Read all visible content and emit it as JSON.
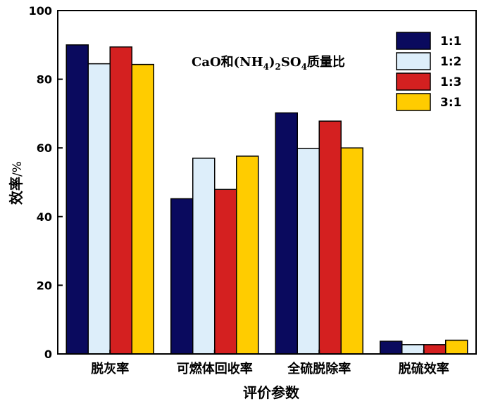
{
  "chart_data": {
    "type": "bar",
    "title": "",
    "xlabel": "评价参数",
    "ylabel": "效率",
    "ylabel_unit": "/%",
    "ylim": [
      0,
      100
    ],
    "yticks": [
      "0",
      "20",
      "40",
      "60",
      "80",
      "100"
    ],
    "categories": [
      "脱灰率",
      "可燃体回收率",
      "全硫脱除率",
      "脱硫效率"
    ],
    "legend_title": {
      "prefix": "CaO和(NH",
      "sub1": "4",
      "mid": ")",
      "sub2": "2",
      "mid2": "SO",
      "sub3": "4",
      "suffix": "质量比"
    },
    "legend_position": "top-right",
    "series": [
      {
        "name": "1:1",
        "color": "#0a0a5e",
        "values": [
          90.0,
          45.2,
          70.2,
          3.7
        ]
      },
      {
        "name": "1:2",
        "color": "#ddeefa",
        "values": [
          84.5,
          57.0,
          59.8,
          2.7
        ]
      },
      {
        "name": "1:3",
        "color": "#d42020",
        "values": [
          89.4,
          47.9,
          67.8,
          2.7
        ]
      },
      {
        "name": "3:1",
        "color": "#ffcc00",
        "values": [
          84.3,
          57.6,
          60.0,
          4.0
        ]
      }
    ]
  }
}
